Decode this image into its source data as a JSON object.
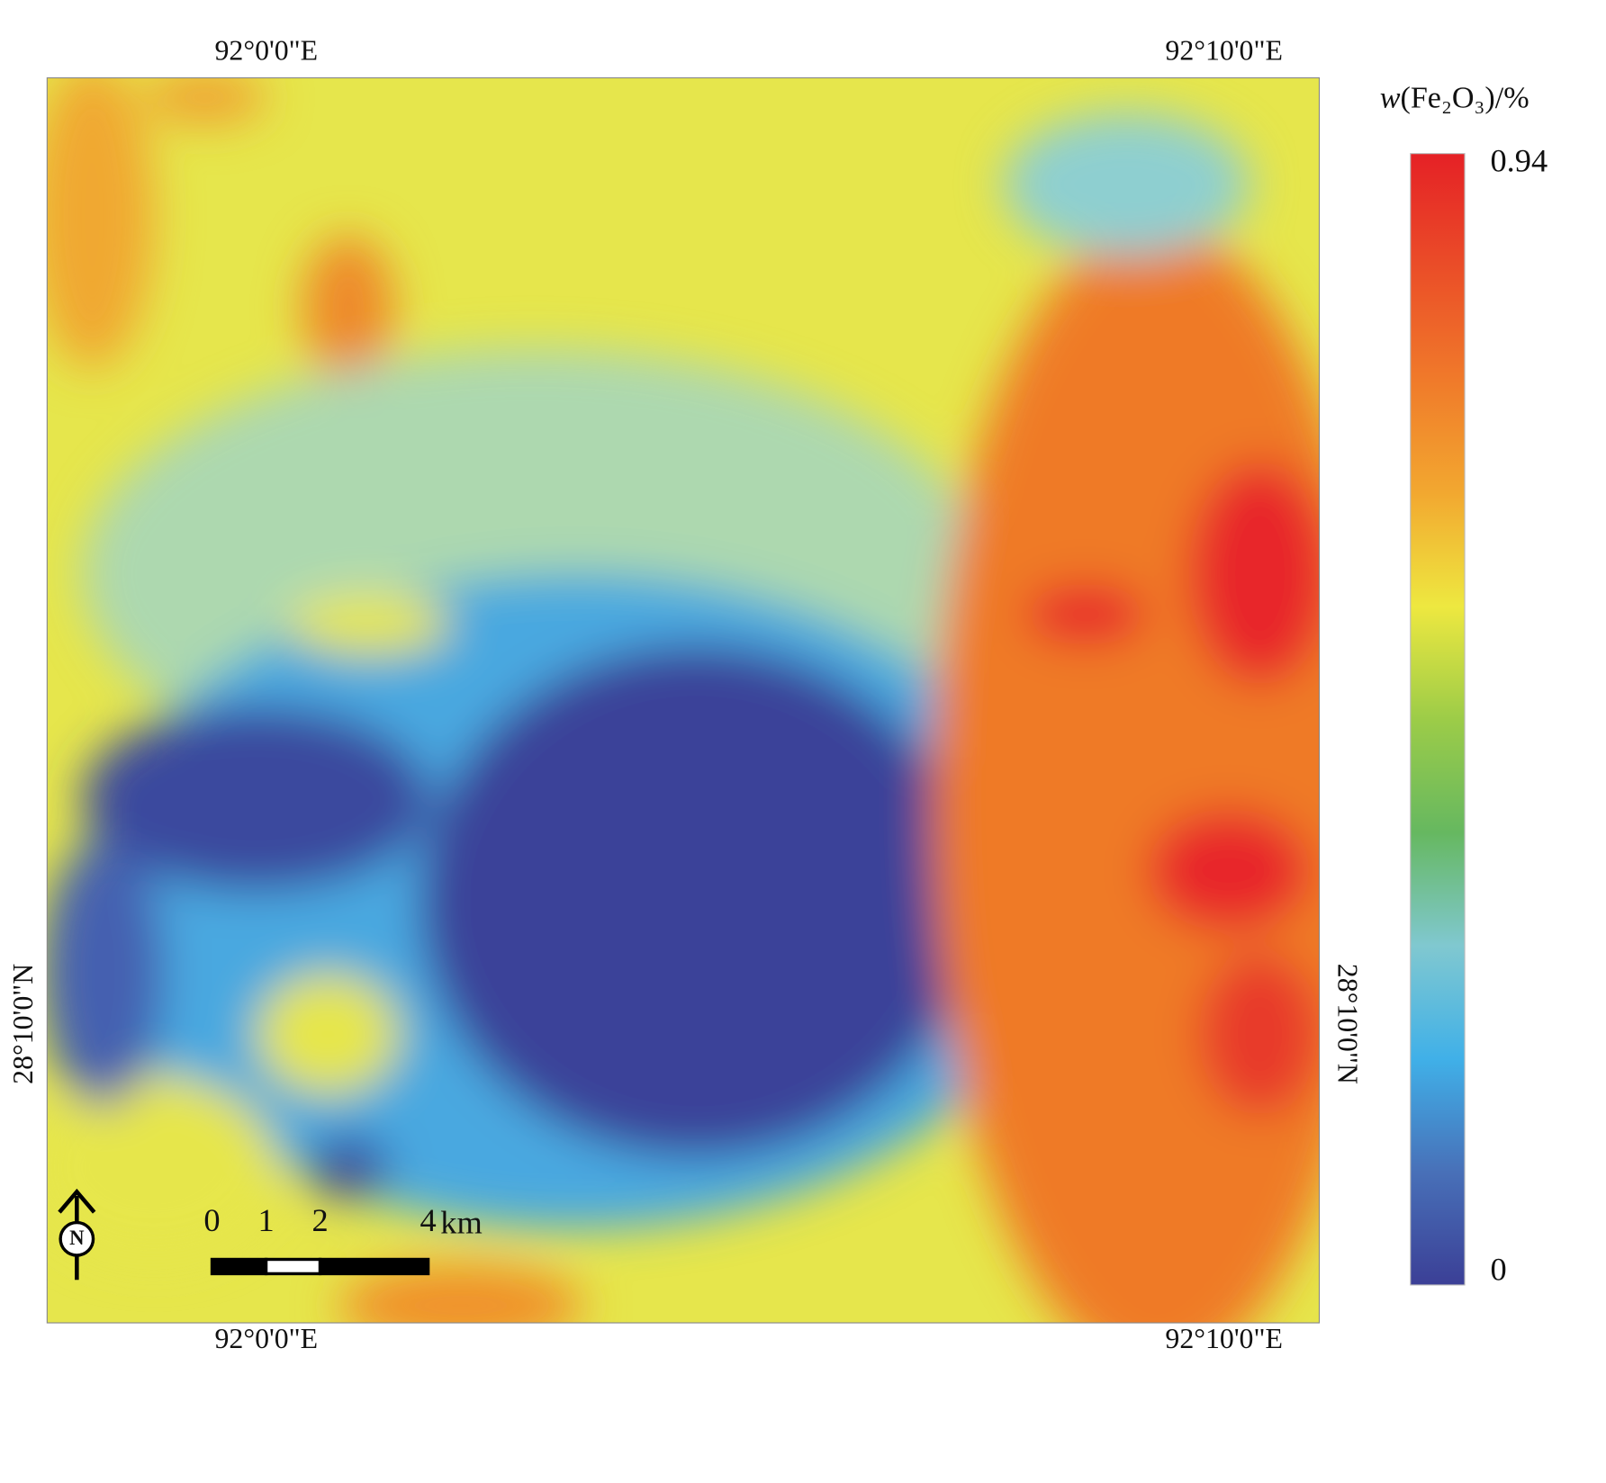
{
  "map": {
    "top_lon_labels": [
      "92°0'0\"E",
      "92°10'0\"E"
    ],
    "bottom_lon_labels": [
      "92°0'0\"E",
      "92°10'0\"E"
    ],
    "lat_labels": [
      "28°10'0\"N",
      "28°10'0\"N"
    ]
  },
  "legend": {
    "title_var": "w",
    "title_rest": "(Fe₂O₃)/%",
    "max": 0.94,
    "min": 0
  },
  "scale_bar": {
    "ticks": [
      0,
      1,
      2,
      4
    ],
    "unit": "km"
  },
  "north_arrow": "N"
}
